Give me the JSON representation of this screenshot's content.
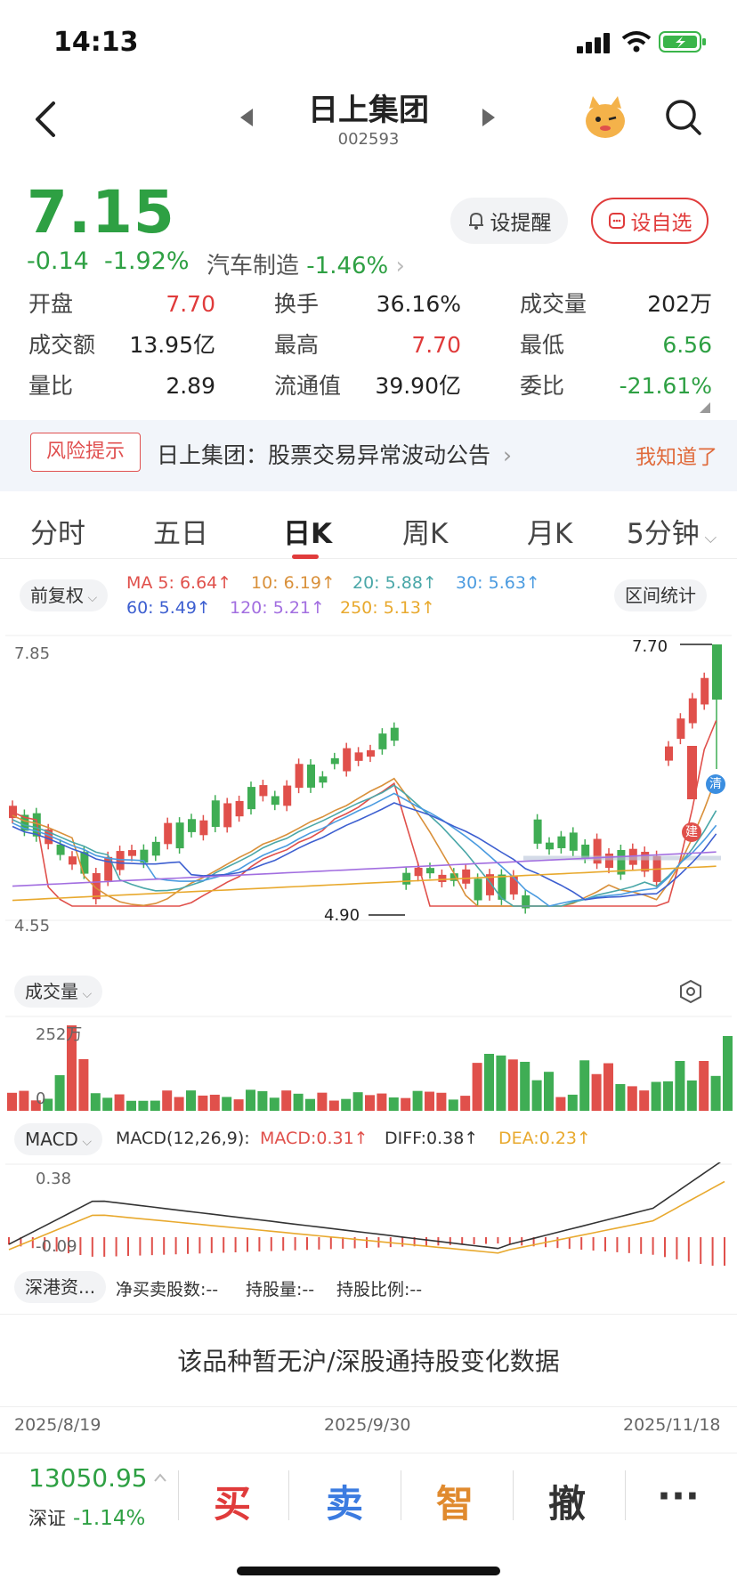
{
  "status": {
    "time": "14:13"
  },
  "header": {
    "title": "日上集团",
    "code": "002593"
  },
  "quote": {
    "price": "7.15",
    "change": "-0.14",
    "change_pct": "-1.92%",
    "sector_name": "汽车制造",
    "sector_change": "-1.46%"
  },
  "actions": {
    "remind": "设提醒",
    "favorite": "设自选"
  },
  "stats": [
    {
      "label": "开盘",
      "value": "7.70",
      "color": "#e03b3b"
    },
    {
      "label": "换手",
      "value": "36.16%",
      "color": "#222222"
    },
    {
      "label": "成交量",
      "value": "202万",
      "color": "#222222"
    },
    {
      "label": "成交额",
      "value": "13.95亿",
      "color": "#222222"
    },
    {
      "label": "最高",
      "value": "7.70",
      "color": "#e03b3b"
    },
    {
      "label": "最低",
      "value": "6.56",
      "color": "#2ea043"
    },
    {
      "label": "量比",
      "value": "2.89",
      "color": "#222222"
    },
    {
      "label": "流通值",
      "value": "39.90亿",
      "color": "#222222"
    },
    {
      "label": "委比",
      "value": "-21.61%",
      "color": "#2ea043"
    }
  ],
  "risk": {
    "tag": "风险提示",
    "text": "日上集团：股票交易异常波动公告",
    "ok": "我知道了"
  },
  "tabs": [
    "分时",
    "五日",
    "日K",
    "周K",
    "月K",
    "5分钟"
  ],
  "kline": {
    "adjust": "前复权",
    "range_stats": "区间统计",
    "ma": [
      {
        "label": "MA 5: 6.64↑",
        "color": "#e0504b"
      },
      {
        "label": "10: 6.19↑",
        "color": "#d9903a"
      },
      {
        "label": "20: 5.88↑",
        "color": "#4aa7a8"
      },
      {
        "label": "30: 5.63↑",
        "color": "#4b9be0"
      },
      {
        "label": "60: 5.49↑",
        "color": "#3d5fd0"
      },
      {
        "label": "120: 5.21↑",
        "color": "#a26ee0"
      },
      {
        "label": "250: 5.13↑",
        "color": "#e8a92e"
      }
    ],
    "y_top": "7.85",
    "y_bottom": "4.55",
    "high_label": "7.70",
    "low_label": "4.90",
    "badge_qing": "清",
    "badge_jian": "建"
  },
  "volume": {
    "label": "成交量",
    "y_top": "252万",
    "y_zero": "0"
  },
  "macd": {
    "label": "MACD",
    "params": "MACD(12,26,9):",
    "macd": "MACD:0.31↑",
    "diff": "DIFF:0.38↑",
    "dea": "DEA:0.23↑",
    "y_top": "0.38",
    "y_bottom": "-0.09"
  },
  "sgt": {
    "label": "深港资...",
    "net": "净买卖股数:--",
    "hold": "持股量:--",
    "ratio": "持股比例:--",
    "empty": "该品种暂无沪/深股通持股变化数据"
  },
  "dates": [
    "2025/8/19",
    "2025/9/30",
    "2025/11/18"
  ],
  "index": {
    "value": "13050.95",
    "name": "深证",
    "change": "-1.14%"
  },
  "bottom_actions": [
    {
      "label": "买",
      "color": "#e03b3b"
    },
    {
      "label": "卖",
      "color": "#3b7be0"
    },
    {
      "label": "智",
      "color": "#e08a2e"
    },
    {
      "label": "撤",
      "color": "#333333"
    },
    {
      "label": "···",
      "color": "#333333"
    }
  ]
}
